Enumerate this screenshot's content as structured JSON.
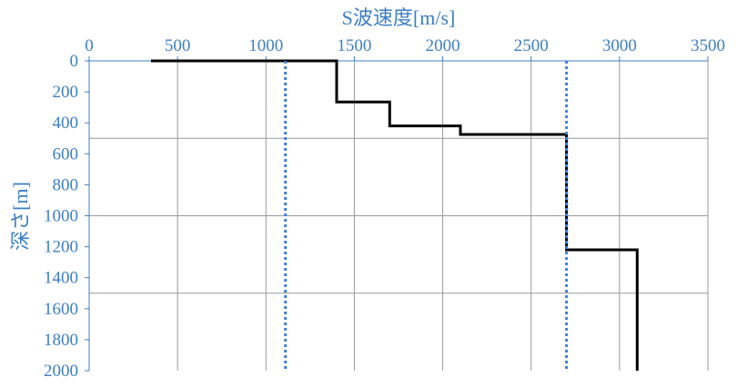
{
  "chart_data": {
    "type": "line",
    "xlabel": "S波速度[m/s]",
    "ylabel": "深さ[m]",
    "xlim": [
      0,
      3500
    ],
    "ylim": [
      0,
      2000
    ],
    "y_inverted": true,
    "x_axis_position": "top",
    "x_ticks": [
      0,
      500,
      1000,
      1500,
      2000,
      2500,
      3000,
      3500
    ],
    "y_ticks": [
      0,
      200,
      400,
      600,
      800,
      1000,
      1200,
      1400,
      1600,
      1800,
      2000
    ],
    "x_gridlines": [
      500,
      1000,
      1500,
      2000,
      2500,
      3000,
      3500
    ],
    "y_gridlines": [
      500,
      1000,
      1500
    ],
    "series": [
      {
        "style": "step",
        "color": "#000000",
        "x": [
          350,
          1400,
          1400,
          1700,
          1700,
          2100,
          2100,
          2700,
          2700,
          3100,
          3100
        ],
        "y": [
          0,
          0,
          265,
          265,
          420,
          420,
          475,
          475,
          1220,
          1220,
          2000
        ]
      },
      {
        "style": "dotted-vertical",
        "color": "#3c7fe0",
        "x": [
          1110,
          1110
        ],
        "y": [
          0,
          2000
        ]
      },
      {
        "style": "dotted-vertical",
        "color": "#3c7fe0",
        "x": [
          2700,
          2700
        ],
        "y": [
          0,
          2000
        ]
      }
    ]
  }
}
